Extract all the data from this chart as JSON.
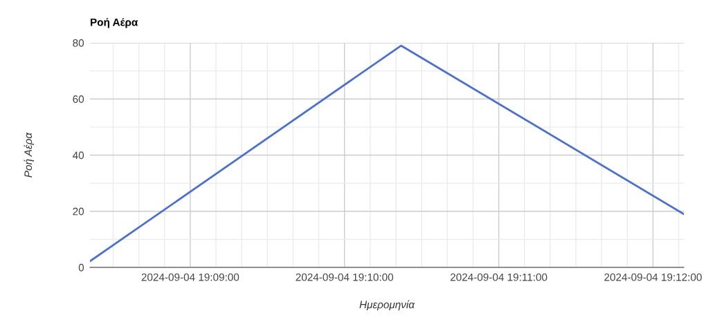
{
  "chart_data": {
    "type": "line",
    "title": "Ροή Αέρα",
    "xlabel": "Ημερομηνία",
    "ylabel": "Ροή Αέρα",
    "x": [
      "2024-09-04T19:08:21",
      "2024-09-04T19:10:22",
      "2024-09-04T19:12:12"
    ],
    "series": [
      {
        "color": "#4a6fd6",
        "values": [
          2.2,
          79,
          19
        ]
      }
    ],
    "xlim": [
      "2024-09-04T19:08:21",
      "2024-09-04T19:12:12"
    ],
    "xticks": [
      {
        "value": "2024-09-04T19:08:30",
        "label": null
      },
      {
        "value": "2024-09-04T19:08:40",
        "label": null
      },
      {
        "value": "2024-09-04T19:08:50",
        "label": null
      },
      {
        "value": "2024-09-04T19:09:00",
        "label": "2024-09-04 19:09:00"
      },
      {
        "value": "2024-09-04T19:09:10",
        "label": null
      },
      {
        "value": "2024-09-04T19:09:20",
        "label": null
      },
      {
        "value": "2024-09-04T19:09:30",
        "label": null
      },
      {
        "value": "2024-09-04T19:09:40",
        "label": null
      },
      {
        "value": "2024-09-04T19:09:50",
        "label": null
      },
      {
        "value": "2024-09-04T19:10:00",
        "label": "2024-09-04 19:10:00"
      },
      {
        "value": "2024-09-04T19:10:10",
        "label": null
      },
      {
        "value": "2024-09-04T19:10:20",
        "label": null
      },
      {
        "value": "2024-09-04T19:10:30",
        "label": null
      },
      {
        "value": "2024-09-04T19:10:40",
        "label": null
      },
      {
        "value": "2024-09-04T19:10:50",
        "label": null
      },
      {
        "value": "2024-09-04T19:11:00",
        "label": "2024-09-04 19:11:00"
      },
      {
        "value": "2024-09-04T19:11:10",
        "label": null
      },
      {
        "value": "2024-09-04T19:11:20",
        "label": null
      },
      {
        "value": "2024-09-04T19:11:30",
        "label": null
      },
      {
        "value": "2024-09-04T19:11:40",
        "label": null
      },
      {
        "value": "2024-09-04T19:11:50",
        "label": null
      },
      {
        "value": "2024-09-04T19:12:00",
        "label": "2024-09-04 19:12:00"
      },
      {
        "value": "2024-09-04T19:12:10",
        "label": null
      }
    ],
    "ylim": [
      0,
      80
    ],
    "yticks": [
      0,
      {
        "value": 10,
        "label": null
      },
      20,
      {
        "value": 30,
        "label": null
      },
      40,
      {
        "value": 50,
        "label": null
      },
      60,
      {
        "value": 70,
        "label": null
      },
      80
    ],
    "grid": true,
    "line_style": "solid",
    "marker": "none"
  }
}
